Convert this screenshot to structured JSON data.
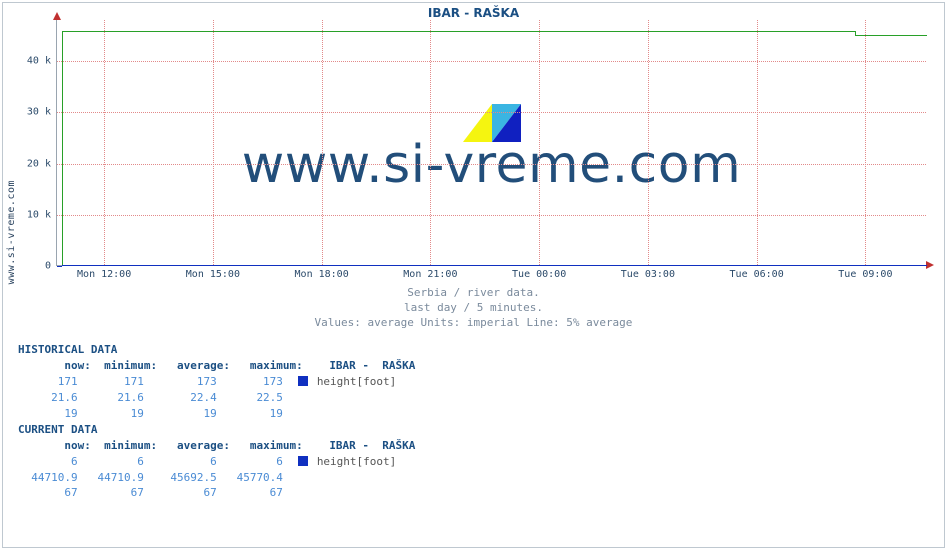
{
  "chart": {
    "title": "IBAR -  RAŠKA",
    "vlabel": "www.si-vreme.com",
    "watermark_text": "www.si-vreme.com",
    "plot_bg": "#ffffff",
    "grid_color": "#e28a8a",
    "axis_color": "#9aa5b0",
    "title_color": "#1b4f83",
    "font": "monospace",
    "xlim": [
      0,
      24
    ],
    "ylim": [
      0,
      48000
    ],
    "yticks": [
      {
        "v": 0,
        "label": "0"
      },
      {
        "v": 10000,
        "label": "10 k"
      },
      {
        "v": 20000,
        "label": "20 k"
      },
      {
        "v": 30000,
        "label": "30 k"
      },
      {
        "v": 40000,
        "label": "40 k"
      }
    ],
    "xticks": [
      {
        "t": 1.3,
        "label": "Mon 12:00"
      },
      {
        "t": 4.3,
        "label": "Mon 15:00"
      },
      {
        "t": 7.3,
        "label": "Mon 18:00"
      },
      {
        "t": 10.3,
        "label": "Mon 21:00"
      },
      {
        "t": 13.3,
        "label": "Tue 00:00"
      },
      {
        "t": 16.3,
        "label": "Tue 03:00"
      },
      {
        "t": 19.3,
        "label": "Tue 06:00"
      },
      {
        "t": 22.3,
        "label": "Tue 09:00"
      }
    ],
    "series": [
      {
        "name": "green",
        "color": "#28a028",
        "pts": [
          [
            0,
            0
          ],
          [
            0.15,
            0
          ],
          [
            0.15,
            45770
          ],
          [
            22.0,
            45770
          ],
          [
            22.0,
            45100
          ],
          [
            24.0,
            45100
          ]
        ]
      },
      {
        "name": "blue",
        "color": "#1030c0",
        "pts": [
          [
            0,
            0
          ],
          [
            0.15,
            0
          ],
          [
            0.15,
            173
          ],
          [
            24.0,
            173
          ]
        ]
      }
    ],
    "subtitle1": "Serbia / river data.",
    "subtitle2": "last day / 5 minutes.",
    "subtitle3": "Values: average  Units: imperial  Line: 5% average",
    "wm_logo_colors": [
      "#f5f510",
      "#3ab5e2",
      "#1020c0",
      "#ffffff"
    ]
  },
  "historical": {
    "header": "HISTORICAL DATA",
    "cols": [
      "now:",
      "minimum:",
      "average:",
      "maximum:"
    ],
    "series_label": "IBAR -  RAŠKA",
    "marker_color": "#1030c0",
    "metric": "height[foot]",
    "rows": [
      [
        "171",
        "171",
        "173",
        "173",
        true
      ],
      [
        "21.6",
        "21.6",
        "22.4",
        "22.5",
        false
      ],
      [
        "19",
        "19",
        "19",
        "19",
        false
      ]
    ]
  },
  "current": {
    "header": "CURRENT DATA",
    "cols": [
      "now:",
      "minimum:",
      "average:",
      "maximum:"
    ],
    "series_label": "IBAR -  RAŠKA",
    "marker_color": "#1030c0",
    "metric": "height[foot]",
    "rows": [
      [
        "6",
        "6",
        "6",
        "6",
        true
      ],
      [
        "44710.9",
        "44710.9",
        "45692.5",
        "45770.4",
        false
      ],
      [
        "67",
        "67",
        "67",
        "67",
        false
      ]
    ]
  }
}
